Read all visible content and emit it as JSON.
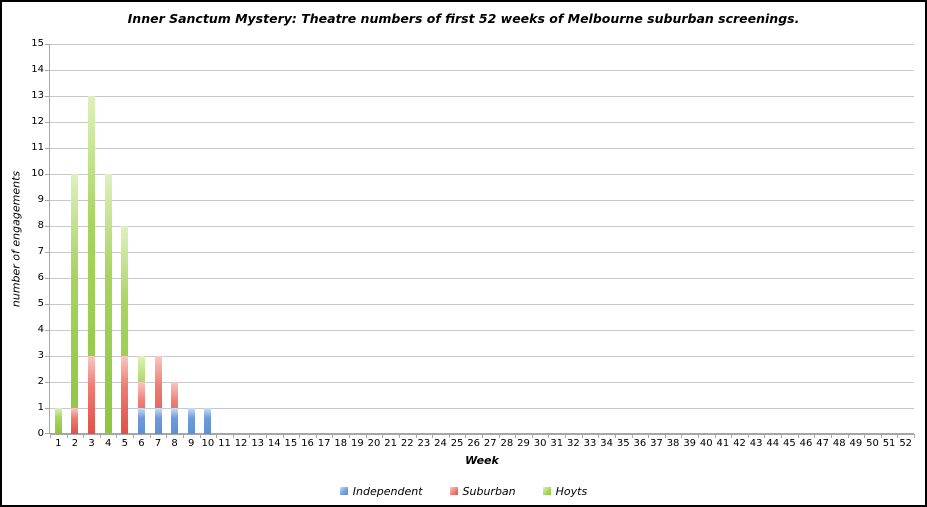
{
  "window": {
    "background": "#ffffff",
    "border_color": "#000000"
  },
  "chart_data": {
    "type": "bar",
    "title": "Inner Sanctum Mystery: Theatre numbers of first 52 weeks of Melbourne suburban screenings.",
    "xlabel": "Week",
    "ylabel": "number of engagements",
    "ylim": [
      0,
      15
    ],
    "y_tick_step": 1,
    "grid": true,
    "gridline_color": "#c9c9c9",
    "axis_color": "#a6a6a6",
    "bar_overlap": "full",
    "legend_position": "bottom",
    "categories": [
      1,
      2,
      3,
      4,
      5,
      6,
      7,
      8,
      9,
      10,
      11,
      12,
      13,
      14,
      15,
      16,
      17,
      18,
      19,
      20,
      21,
      22,
      23,
      24,
      25,
      26,
      27,
      28,
      29,
      30,
      31,
      32,
      33,
      34,
      35,
      36,
      37,
      38,
      39,
      40,
      41,
      42,
      43,
      44,
      45,
      46,
      47,
      48,
      49,
      50,
      51,
      52
    ],
    "series": [
      {
        "name": "Independent",
        "color": "#6f9cd9",
        "color_light": "#ccdef4",
        "color_dark": "#5d90d2",
        "z": 3,
        "values": [
          0,
          0,
          0,
          0,
          0,
          1,
          1,
          1,
          1,
          1,
          0,
          0,
          0,
          0,
          0,
          0,
          0,
          0,
          0,
          0,
          0,
          0,
          0,
          0,
          0,
          0,
          0,
          0,
          0,
          0,
          0,
          0,
          0,
          0,
          0,
          0,
          0,
          0,
          0,
          0,
          0,
          0,
          0,
          0,
          0,
          0,
          0,
          0,
          0,
          0,
          0,
          0
        ]
      },
      {
        "name": "Suburban",
        "color": "#ee7d74",
        "color_light": "#f8c7c2",
        "color_dark": "#df5148",
        "z": 2,
        "values": [
          0,
          1,
          3,
          0,
          3,
          2,
          3,
          2,
          0,
          0,
          0,
          0,
          0,
          0,
          0,
          0,
          0,
          0,
          0,
          0,
          0,
          0,
          0,
          0,
          0,
          0,
          0,
          0,
          0,
          0,
          0,
          0,
          0,
          0,
          0,
          0,
          0,
          0,
          0,
          0,
          0,
          0,
          0,
          0,
          0,
          0,
          0,
          0,
          0,
          0,
          0,
          0
        ]
      },
      {
        "name": "Hoyts",
        "color": "#a8d45f",
        "color_light": "#dff0bd",
        "color_dark": "#8dc63f",
        "z": 1,
        "values": [
          1,
          10,
          13,
          10,
          8,
          3,
          0,
          0,
          0,
          0,
          0,
          0,
          0,
          0,
          0,
          0,
          0,
          0,
          0,
          0,
          0,
          0,
          0,
          0,
          0,
          0,
          0,
          0,
          0,
          0,
          0,
          0,
          0,
          0,
          0,
          0,
          0,
          0,
          0,
          0,
          0,
          0,
          0,
          0,
          0,
          0,
          0,
          0,
          0,
          0,
          0,
          0
        ]
      }
    ]
  }
}
